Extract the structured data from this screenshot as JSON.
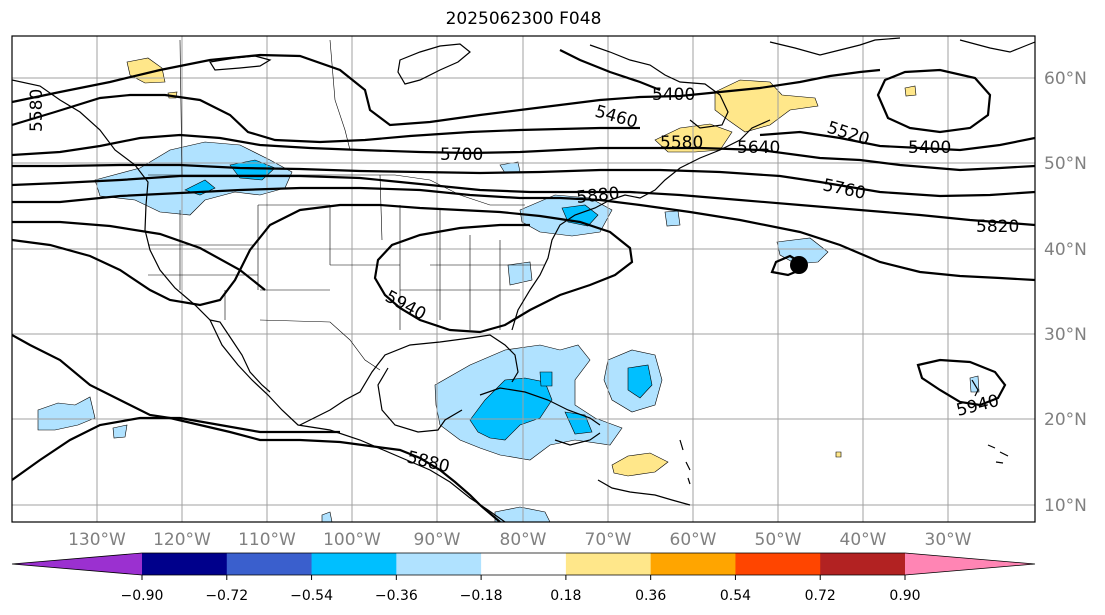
{
  "title": "2025062300 F048",
  "lat_labels": [
    "60°N",
    "50°N",
    "40°N",
    "30°N",
    "20°N",
    "10°N"
  ],
  "lon_labels": [
    "130°W",
    "120°W",
    "110°W",
    "100°W",
    "90°W",
    "80°W",
    "70°W",
    "60°W",
    "50°W",
    "40°W",
    "30°W"
  ],
  "contour_labels": [
    "5400",
    "5400",
    "5460",
    "5520",
    "5580",
    "5580",
    "5640",
    "5700",
    "5760",
    "5820",
    "5880",
    "5880",
    "5940",
    "5940"
  ],
  "colorbar": {
    "colors": [
      "#9b30d0",
      "#00008b",
      "#3a5fcd",
      "#00bfff",
      "#b0e2ff",
      "#ffffff",
      "#ffe78a",
      "#ffa500",
      "#ff4500",
      "#b22222",
      "#ff85b4"
    ],
    "tick_labels": [
      "−0.90",
      "−0.72",
      "−0.54",
      "−0.36",
      "−0.18",
      "0.18",
      "0.36",
      "0.54",
      "0.72",
      "0.90"
    ]
  }
}
